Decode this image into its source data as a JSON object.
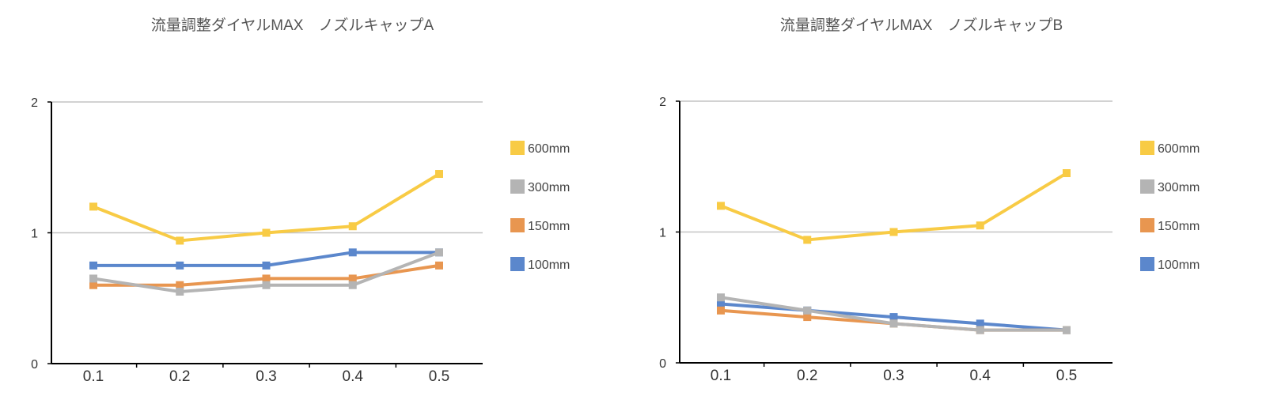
{
  "chart_data": [
    {
      "type": "line",
      "title": "流量調整ダイヤルMAX　ノズルキャップA",
      "categories": [
        "0.1",
        "0.2",
        "0.3",
        "0.4",
        "0.5"
      ],
      "ylim": [
        0,
        2
      ],
      "yticks": [
        "0",
        "1",
        "2"
      ],
      "grid": true,
      "legend_position": "right",
      "series": [
        {
          "name": "100mm",
          "color": "#5b87cc",
          "values": [
            0.75,
            0.75,
            0.75,
            0.85,
            0.85
          ]
        },
        {
          "name": "150mm",
          "color": "#e89650",
          "values": [
            0.6,
            0.6,
            0.65,
            0.65,
            0.75
          ]
        },
        {
          "name": "300mm",
          "color": "#b4b4b4",
          "values": [
            0.65,
            0.55,
            0.6,
            0.6,
            0.85
          ]
        },
        {
          "name": "600mm",
          "color": "#f8cb45",
          "values": [
            1.2,
            0.94,
            1.0,
            1.05,
            1.45
          ]
        }
      ],
      "legend_order": [
        "600mm",
        "300mm",
        "150mm",
        "100mm"
      ]
    },
    {
      "type": "line",
      "title": "流量調整ダイヤルMAX　ノズルキャップB",
      "categories": [
        "0.1",
        "0.2",
        "0.3",
        "0.4",
        "0.5"
      ],
      "ylim": [
        0,
        2
      ],
      "yticks": [
        "0",
        "1",
        "2"
      ],
      "grid": true,
      "legend_position": "right",
      "series": [
        {
          "name": "100mm",
          "color": "#5b87cc",
          "values": [
            0.45,
            0.4,
            0.35,
            0.3,
            0.25
          ]
        },
        {
          "name": "150mm",
          "color": "#e89650",
          "values": [
            0.4,
            0.35,
            0.3,
            0.25,
            0.25
          ]
        },
        {
          "name": "300mm",
          "color": "#b4b4b4",
          "values": [
            0.5,
            0.4,
            0.3,
            0.25,
            0.25
          ]
        },
        {
          "name": "600mm",
          "color": "#f8cb45",
          "values": [
            1.2,
            0.94,
            1.0,
            1.05,
            1.45
          ]
        }
      ],
      "legend_order": [
        "600mm",
        "300mm",
        "150mm",
        "100mm"
      ]
    }
  ]
}
